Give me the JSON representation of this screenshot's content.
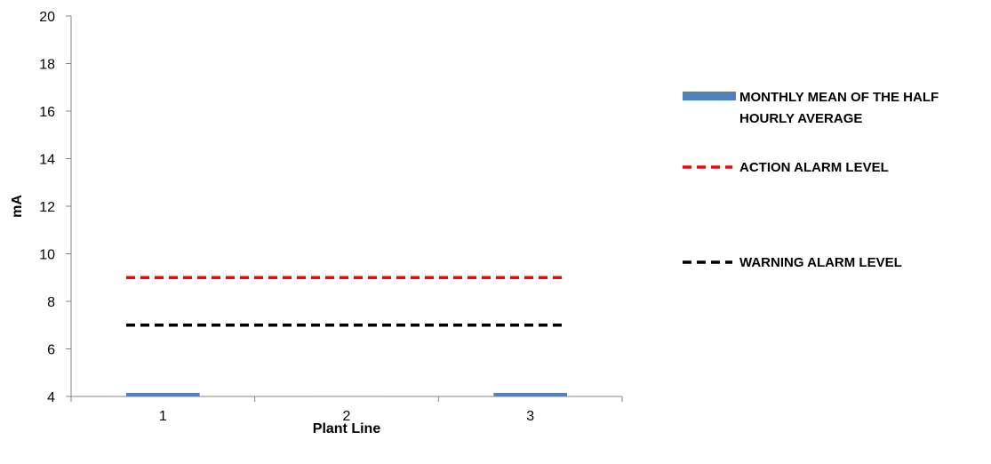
{
  "chart_data": {
    "type": "bar",
    "xlabel": "Plant Line",
    "ylabel": "mA",
    "categories": [
      "1",
      "2",
      "3"
    ],
    "ylim": [
      4,
      20
    ],
    "yticks": [
      4,
      6,
      8,
      10,
      12,
      14,
      16,
      18,
      20
    ],
    "series": [
      {
        "name": "MONTHLY MEAN OF THE HALF HOURLY AVERAGE",
        "kind": "bar",
        "color": "#4f81bd",
        "values": [
          4.15,
          4.02,
          4.15
        ]
      },
      {
        "name": "ACTION ALARM LEVEL",
        "kind": "line",
        "style": "dashed",
        "color": "#ff0000",
        "values": [
          9,
          9,
          9
        ]
      },
      {
        "name": "WARNING ALARM LEVEL",
        "kind": "line",
        "style": "dashed",
        "color": "#000000",
        "values": [
          7,
          7,
          7
        ]
      }
    ],
    "legend": {
      "position": "right",
      "lines": [
        [
          "MONTHLY MEAN OF THE HALF",
          "HOURLY AVERAGE"
        ],
        [
          "ACTION ALARM LEVEL"
        ],
        [
          "WARNING ALARM LEVEL"
        ]
      ]
    },
    "grid": false
  }
}
